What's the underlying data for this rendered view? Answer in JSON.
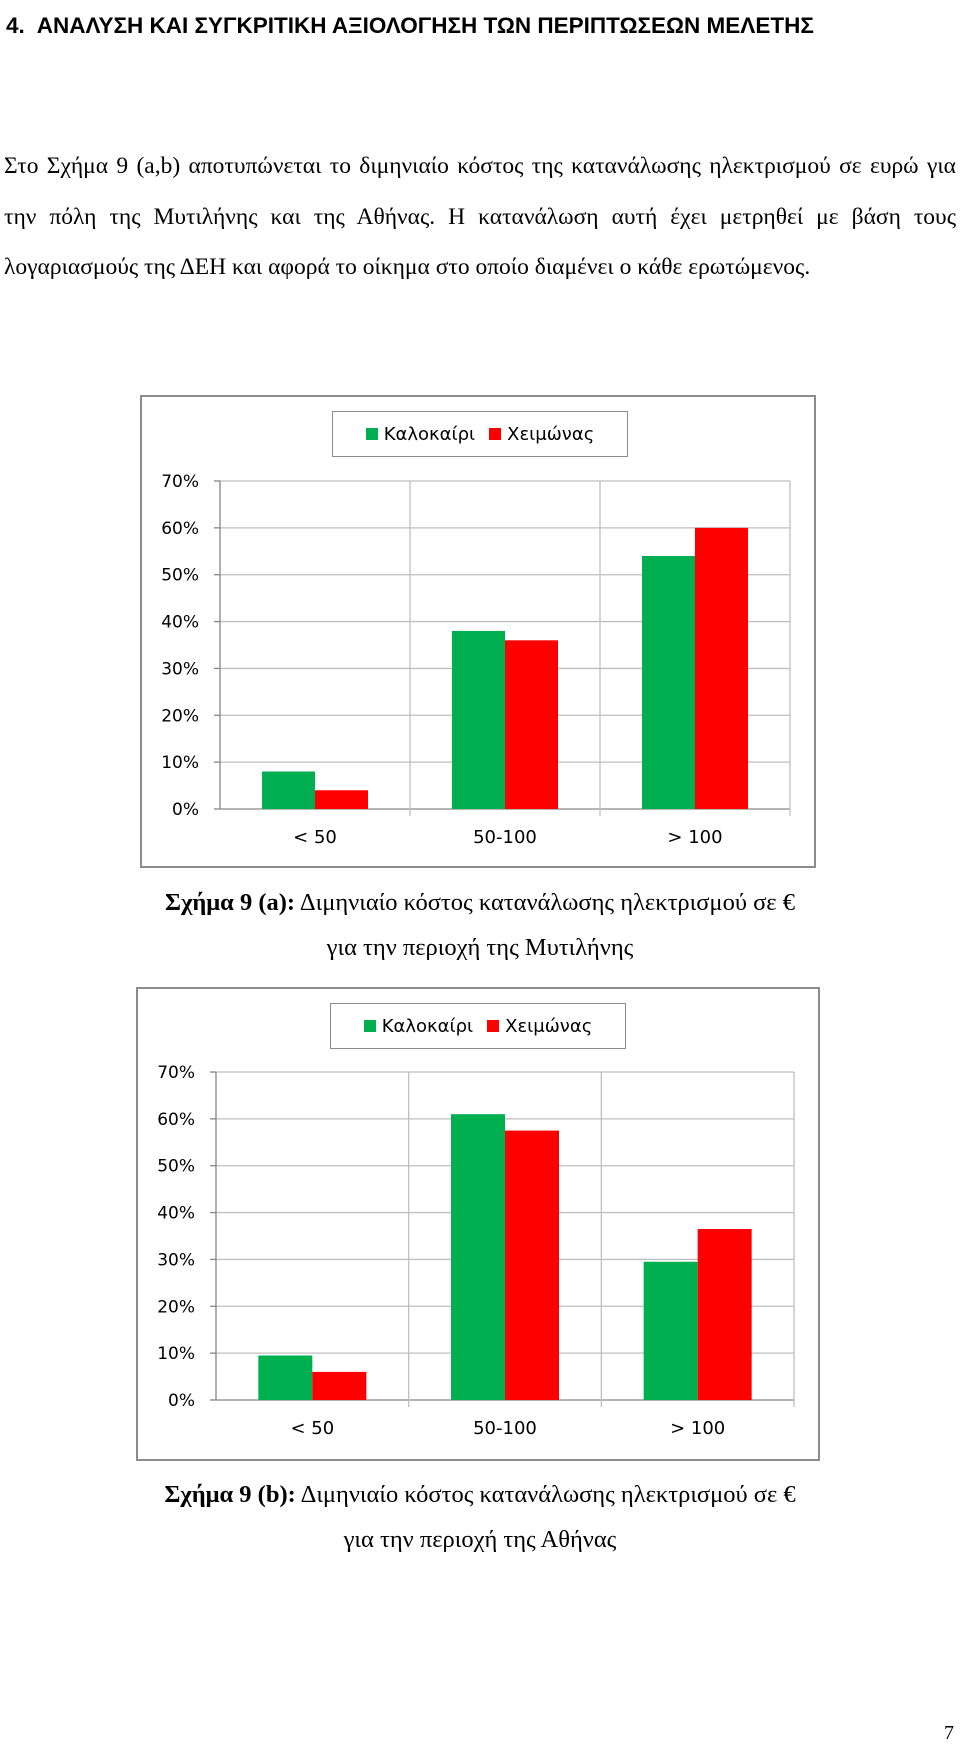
{
  "section": {
    "number": "4.",
    "title": "ΑΝΑΛΥΣΗ ΚΑΙ ΣΥΓΚΡΙΤΙΚΗ ΑΞΙΟΛΟΓΗΣΗ ΤΩΝ ΠΕΡΙΠΤΩΣΕΩΝ ΜΕΛΕΤΗΣ"
  },
  "paragraph": "Στο Σχήμα 9 (a,b) αποτυπώνεται το διμηνιαίο κόστος της κατανάλωσης ηλεκτρισμού σε ευρώ για την πόλη της Μυτιλήνης και της Αθήνας. Η κατανάλωση αυτή έχει μετρηθεί με βάση τους λογαριασμούς της ΔΕΗ και αφορά το οίκημα στο οποίο διαμένει ο κάθε ερωτώμενος.",
  "figures": [
    {
      "caption_label": "Σχήμα 9 (a):",
      "caption_line1": "Διμηνιαίο κόστος κατανάλωσης ηλεκτρισμού σε €",
      "caption_line2": "για την περιοχή της Μυτιλήνης"
    },
    {
      "caption_label": "Σχήμα 9 (b):",
      "caption_line1": "Διμηνιαίο κόστος κατανάλωσης ηλεκτρισμού σε €",
      "caption_line2": "για την περιοχή της Αθήνας"
    }
  ],
  "colors": {
    "summer": "#00b050",
    "winter": "#ff0000",
    "grid": "#bfbfbf",
    "axis": "#868686"
  },
  "chart_data": [
    {
      "type": "bar",
      "categories": [
        "< 50",
        "50-100",
        "> 100"
      ],
      "series": [
        {
          "name": "Καλοκαίρι",
          "values": [
            8,
            38,
            54
          ]
        },
        {
          "name": "Χειμώνας",
          "values": [
            4,
            36,
            60
          ]
        }
      ],
      "ylim": [
        0,
        70
      ],
      "yticks": [
        "0%",
        "10%",
        "20%",
        "30%",
        "40%",
        "50%",
        "60%",
        "70%"
      ],
      "legend": "top",
      "grid": true
    },
    {
      "type": "bar",
      "categories": [
        "< 50",
        "50-100",
        "> 100"
      ],
      "series": [
        {
          "name": "Καλοκαίρι",
          "values": [
            9.5,
            61,
            29.5
          ]
        },
        {
          "name": "Χειμώνας",
          "values": [
            6,
            57.5,
            36.5
          ]
        }
      ],
      "ylim": [
        0,
        70
      ],
      "yticks": [
        "0%",
        "10%",
        "20%",
        "30%",
        "40%",
        "50%",
        "60%",
        "70%"
      ],
      "legend": "top",
      "grid": true
    }
  ],
  "page_number": "7"
}
